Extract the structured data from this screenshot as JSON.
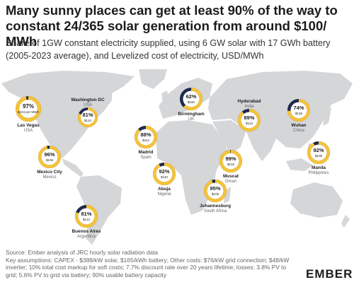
{
  "header": {
    "title": "Many sunny places can get at least 90% of the way to constant 24/365 solar generation from around $100/ MWh",
    "subtitle": "Share of 1GW constant electricity supplied, using 6 GW solar with 17 GWh battery (2005-2023 average), and Levelized cost of electricity, USD/MWh"
  },
  "chart_data": {
    "type": "map",
    "value_unit": "%",
    "cost_unit": "$/MWh",
    "locations": [
      {
        "city": "Las Vegas",
        "country": "USA",
        "value": 97,
        "value_label": "97%",
        "cost": 104,
        "cost_label": "$104 per MWh"
      },
      {
        "city": "Washington DC",
        "country": "USA",
        "value": 81,
        "value_label": "81%",
        "cost": 124,
        "cost_label": "$124"
      },
      {
        "city": "Mexico City",
        "country": "Mexico",
        "value": 96,
        "value_label": "96%",
        "cost": 106,
        "cost_label": "$106"
      },
      {
        "city": "Buenos Aires",
        "country": "Argentina",
        "value": 81,
        "value_label": "81%",
        "cost": 124,
        "cost_label": "$124"
      },
      {
        "city": "Madrid",
        "country": "Spain",
        "value": 88,
        "value_label": "88%",
        "cost": 114,
        "cost_label": "$114"
      },
      {
        "city": "Birmingham",
        "country": "UK",
        "value": 62,
        "value_label": "62%",
        "cost": 160,
        "cost_label": "$160"
      },
      {
        "city": "Abuja",
        "country": "Nigeria",
        "value": 92,
        "value_label": "92%",
        "cost": 110,
        "cost_label": "$110"
      },
      {
        "city": "Johannesburg",
        "country": "South Africa",
        "value": 95,
        "value_label": "95%",
        "cost": 106,
        "cost_label": "$106"
      },
      {
        "city": "Muscat",
        "country": "Oman",
        "value": 99,
        "value_label": "99%",
        "cost": 102,
        "cost_label": "$102"
      },
      {
        "city": "Hyderabad",
        "country": "India",
        "value": 89,
        "value_label": "89%",
        "cost": 113,
        "cost_label": "$113"
      },
      {
        "city": "Wuhan",
        "country": "China",
        "value": 74,
        "value_label": "74%",
        "cost": 135,
        "cost_label": "$135"
      },
      {
        "city": "Manila",
        "country": "Philippines",
        "value": 92,
        "value_label": "92%",
        "cost": 109,
        "cost_label": "$109"
      }
    ]
  },
  "colors": {
    "ring_fill": "#f6c338",
    "ring_track": "#e6e6e6",
    "ring_remainder": "#1d2a4d",
    "land": "#d4d6d8",
    "city_text": "#1c1c1c",
    "country_text": "#666666"
  },
  "footer": {
    "source": "Source: Ember analysis of JRC hourly solar radiation data",
    "assumptions": "Key assumptions: CAPEX - $388/kW solar, $165/kWh battery; Other costs: $76/kW grid connection; $48/kW inverter; 10% total cost markup for soft costs; 7.7% discount rate over 20 years lifetime; losses: 3.8% PV to grid; 5.6% PV to grid via battery; 90% usable battery capacity"
  },
  "logo": {
    "text": "EMBER"
  }
}
